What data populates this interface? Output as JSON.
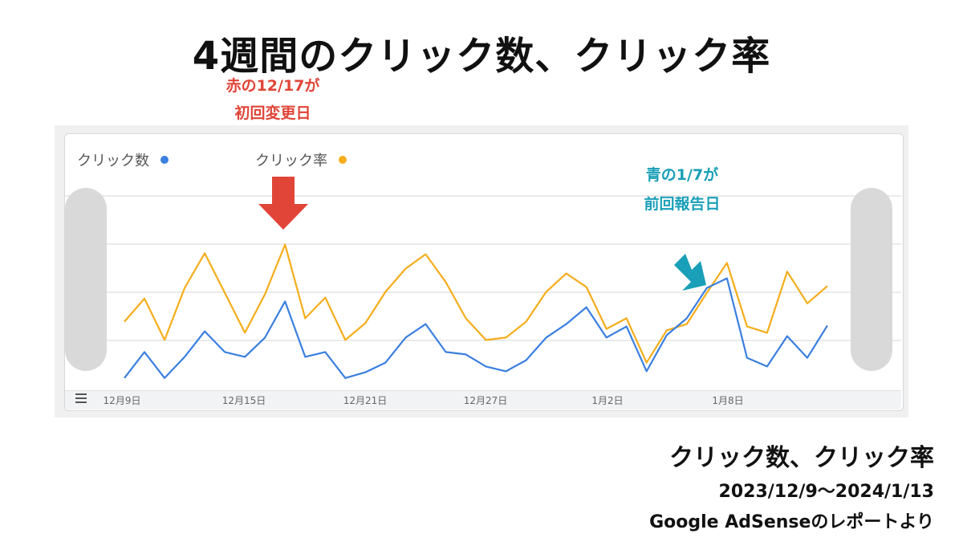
{
  "title": "4週間のクリック数、クリック率",
  "red_note": {
    "line1": "赤の12/17が",
    "line2": "初回変更日"
  },
  "blue_note": {
    "line1": "青の1/7が",
    "line2": "前回報告日"
  },
  "caption": {
    "line1": "クリック数、クリック率",
    "line2": "2023/12/9〜2024/1/13",
    "line3": "Google AdSenseのレポートより"
  },
  "colors": {
    "clicks": "#3b7fe0",
    "ctr": "#f5ad1b",
    "red_arrow": "#e04538",
    "blue_arrow": "#1a9fb8"
  },
  "icons": {
    "menu": "menu-lines-icon",
    "red_arrow": "arrow-down-icon",
    "blue_arrow": "arrow-down-right-icon"
  },
  "chart_data": {
    "type": "line",
    "legend": [
      {
        "label": "クリック数",
        "color": "#3b7fe0"
      },
      {
        "label": "クリック率",
        "color": "#f5ad1b"
      }
    ],
    "x_tick_labels": [
      "12月9日",
      "12月15日",
      "12月21日",
      "12月27日",
      "1月2日",
      "1月8日"
    ],
    "x": [
      "12/9",
      "12/10",
      "12/11",
      "12/12",
      "12/13",
      "12/14",
      "12/15",
      "12/16",
      "12/17",
      "12/18",
      "12/19",
      "12/20",
      "12/21",
      "12/22",
      "12/23",
      "12/24",
      "12/25",
      "12/26",
      "12/27",
      "12/28",
      "12/29",
      "12/30",
      "12/31",
      "1/1",
      "1/2",
      "1/3",
      "1/4",
      "1/5",
      "1/6",
      "1/7",
      "1/8",
      "1/9",
      "1/10",
      "1/11",
      "1/12",
      "1/13"
    ],
    "ylim": [
      0,
      4
    ],
    "grid": true,
    "series": [
      {
        "name": "クリック数",
        "values": [
          0.22,
          0.76,
          0.22,
          0.66,
          1.19,
          0.76,
          0.66,
          1.06,
          1.81,
          0.66,
          0.76,
          0.22,
          0.34,
          0.54,
          1.06,
          1.34,
          0.76,
          0.71,
          0.46,
          0.36,
          0.59,
          1.06,
          1.34,
          1.69,
          1.06,
          1.29,
          0.36,
          1.11,
          1.46,
          2.09,
          2.29,
          0.64,
          0.46,
          1.09,
          0.64,
          1.31
        ]
      },
      {
        "name": "クリック率",
        "values": [
          1.39,
          1.87,
          1.01,
          2.09,
          2.81,
          1.99,
          1.16,
          1.96,
          2.99,
          1.46,
          1.89,
          1.01,
          1.36,
          2.01,
          2.49,
          2.79,
          2.21,
          1.46,
          1.01,
          1.06,
          1.39,
          2.01,
          2.39,
          2.11,
          1.24,
          1.46,
          0.54,
          1.21,
          1.34,
          1.99,
          2.61,
          1.29,
          1.16,
          2.43,
          1.77,
          2.13
        ]
      }
    ]
  }
}
